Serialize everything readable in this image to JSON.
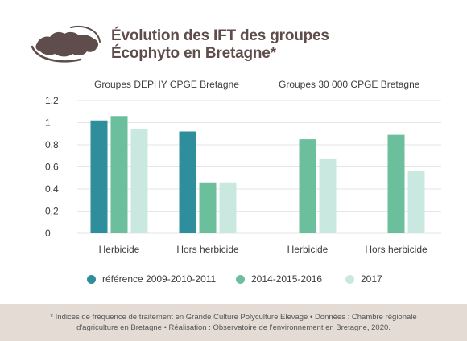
{
  "title": {
    "line1": "Évolution des IFT des groupes",
    "line2": "Écophyto en Bretagne*"
  },
  "groups": [
    {
      "label": "Groupes DEPHY CPGE Bretagne"
    },
    {
      "label": "Groupes 30 000 CPGE Bretagne"
    }
  ],
  "legend": [
    {
      "label": "référence 2009-2010-2011",
      "color": "#2f8e9c"
    },
    {
      "label": "2014-2015-2016",
      "color": "#6cbf9d"
    },
    {
      "label": "2017",
      "color": "#c9e8df"
    }
  ],
  "chart_data": {
    "type": "bar",
    "categories": [
      "Herbicide",
      "Hors herbicide",
      "Herbicide",
      "Hors herbicide"
    ],
    "series": [
      {
        "name": "référence 2009-2010-2011",
        "values": [
          1.02,
          0.92,
          null,
          null
        ]
      },
      {
        "name": "2014-2015-2016",
        "values": [
          1.06,
          0.46,
          0.85,
          0.89
        ]
      },
      {
        "name": "2017",
        "values": [
          0.94,
          0.46,
          0.67,
          0.56
        ]
      }
    ],
    "yticks": [
      "0",
      "0,2",
      "0,4",
      "0,6",
      "0,8",
      "1",
      "1,2"
    ],
    "ylim": [
      0,
      1.2
    ],
    "grid": true,
    "legend_position": "bottom"
  },
  "footer": {
    "line1": "* Indices de fréquence de traitement en Grande Culture Polyculture Elevage • Données : Chambre régionale",
    "line2": "d'agriculture en Bretagne •  Réalisation : Observatoire de l'environnement en Bretagne, 2020."
  }
}
